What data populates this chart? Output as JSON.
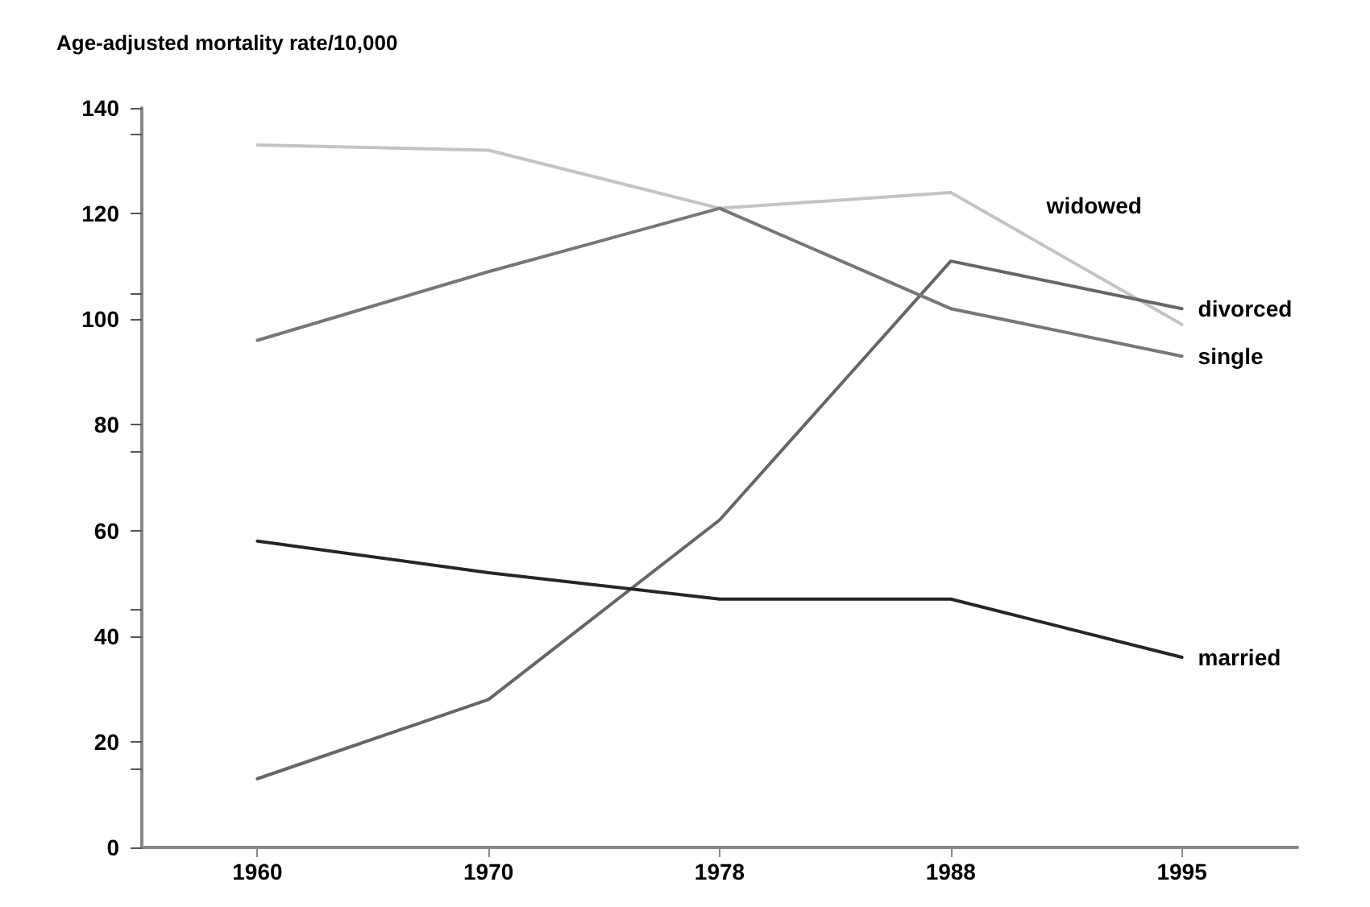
{
  "chart_data": {
    "type": "line",
    "ylabel": "Age-adjusted mortality rate/10,000",
    "categories": [
      "1960",
      "1970",
      "1978",
      "1988",
      "1995"
    ],
    "series": [
      {
        "name": "widowed",
        "color": "#c4c4c4",
        "values": [
          133,
          132,
          121,
          124,
          99
        ]
      },
      {
        "name": "divorced",
        "color": "#666666",
        "values": [
          13,
          28,
          62,
          111,
          102
        ]
      },
      {
        "name": "single",
        "color": "#777777",
        "values": [
          96,
          109,
          121,
          102,
          93
        ]
      },
      {
        "name": "married",
        "color": "#262626",
        "values": [
          58,
          52,
          47,
          47,
          36
        ]
      }
    ],
    "ylim": [
      0,
      140
    ],
    "yticks": [
      0,
      20,
      40,
      60,
      80,
      100,
      120,
      140
    ],
    "grid": false,
    "legend": false,
    "marker": "none",
    "line_style": "solid"
  }
}
